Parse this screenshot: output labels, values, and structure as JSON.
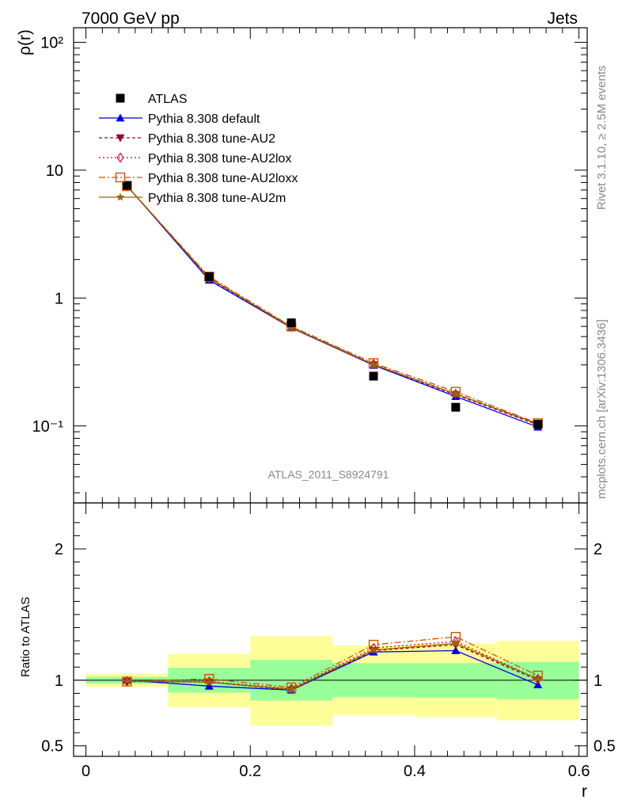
{
  "header": {
    "left": "7000 GeV pp",
    "right": "Jets",
    "analysis": "ATLAS_2011_S8924791",
    "side_top": "Rivet 3.1.10, ≥ 2.5M events",
    "side_bottom": "mcplots.cern.ch [arXiv:1306.3436]"
  },
  "chart_data": {
    "type": "line",
    "x": [
      0.05,
      0.15,
      0.25,
      0.35,
      0.45,
      0.55
    ],
    "bin_edges": [
      0.0,
      0.1,
      0.2,
      0.3,
      0.4,
      0.5,
      0.6
    ],
    "xlabel": "r",
    "ylabel": "ρ(r)",
    "ratio_ylabel": "Ratio to ATLAS",
    "main_yscale": "log",
    "main_ylim": [
      0.025,
      130
    ],
    "ratio_ylim": [
      0.42,
      2.35
    ],
    "xlim": [
      -0.015,
      0.61
    ],
    "x_ticks": [
      "0",
      "0.2",
      "0.4",
      "0.6"
    ],
    "main_y_ticks": [
      "10⁻¹",
      "1",
      "10",
      "10²"
    ],
    "ratio_y_ticks": [
      "0.5",
      "1",
      "2"
    ],
    "legend_position": "top-left",
    "data": {
      "name": "ATLAS",
      "values": [
        7.6,
        1.47,
        0.64,
        0.245,
        0.14,
        0.103
      ]
    },
    "series": [
      {
        "name": "Pythia 8.308 default",
        "color": "#0000dd",
        "dash": "",
        "marker": "triangle-up",
        "values": [
          7.55,
          1.38,
          0.585,
          0.298,
          0.17,
          0.098
        ],
        "ratio": [
          1.0,
          0.955,
          0.925,
          1.215,
          1.225,
          0.965
        ]
      },
      {
        "name": "Pythia 8.308 tune-AU2",
        "color": "#990033",
        "dash": "4,3",
        "marker": "triangle-down",
        "values": [
          7.5,
          1.42,
          0.585,
          0.3,
          0.175,
          0.102
        ],
        "ratio": [
          0.99,
          0.985,
          0.925,
          1.225,
          1.27,
          1.0
        ]
      },
      {
        "name": "Pythia 8.308 tune-AU2lox",
        "color": "#cc0044",
        "dash": "2,3",
        "marker": "diamond-open",
        "values": [
          7.5,
          1.43,
          0.595,
          0.305,
          0.178,
          0.103
        ],
        "ratio": [
          0.99,
          0.99,
          0.935,
          1.245,
          1.295,
          1.01
        ]
      },
      {
        "name": "Pythia 8.308 tune-AU2loxx",
        "color": "#cc5500",
        "dash": "8,3,2,3",
        "marker": "square-open",
        "values": [
          7.5,
          1.47,
          0.6,
          0.31,
          0.185,
          0.105
        ],
        "ratio": [
          0.99,
          1.01,
          0.945,
          1.27,
          1.33,
          1.035
        ]
      },
      {
        "name": "Pythia 8.308 tune-AU2m",
        "color": "#996600",
        "dash": "",
        "marker": "star",
        "values": [
          7.55,
          1.44,
          0.59,
          0.302,
          0.178,
          0.104
        ],
        "ratio": [
          0.995,
          0.985,
          0.93,
          1.23,
          1.28,
          1.01
        ]
      }
    ],
    "uncertainty_bands": {
      "inner_lo": [
        0.975,
        0.905,
        0.845,
        0.87,
        0.865,
        0.855
      ],
      "inner_hi": [
        1.025,
        1.095,
        1.155,
        1.13,
        1.13,
        1.14
      ],
      "outer_lo": [
        0.95,
        0.795,
        0.655,
        0.735,
        0.72,
        0.695
      ],
      "outer_hi": [
        1.05,
        1.2,
        1.335,
        1.265,
        1.28,
        1.3
      ],
      "inner_color": "#99ff99",
      "outer_color": "#ffff99"
    }
  }
}
